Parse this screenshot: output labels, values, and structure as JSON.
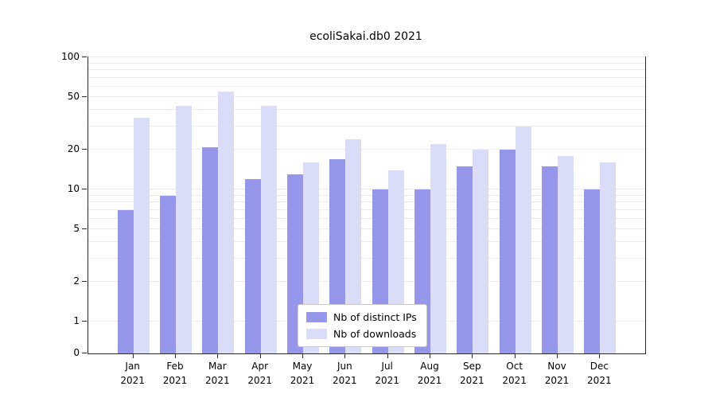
{
  "title": "ecoliSakai.db0 2021",
  "chart_data": {
    "type": "bar",
    "title": "ecoliSakai.db0 2021",
    "categories": [
      "Jan 2021",
      "Feb 2021",
      "Mar 2021",
      "Apr 2021",
      "May 2021",
      "Jun 2021",
      "Jul 2021",
      "Aug 2021",
      "Sep 2021",
      "Oct 2021",
      "Nov 2021",
      "Dec 2021"
    ],
    "series": [
      {
        "name": "Nb of distinct IPs",
        "color": "#9697ea",
        "values": [
          7,
          9,
          21,
          12,
          13,
          17,
          10,
          10,
          15,
          20,
          15,
          10
        ]
      },
      {
        "name": "Nb of downloads",
        "color": "#dbdcf8",
        "values": [
          35,
          43,
          55,
          43,
          16,
          24,
          14,
          22,
          20,
          30,
          18,
          16
        ]
      }
    ],
    "yscale": "symlog",
    "ylim": [
      0,
      100
    ],
    "yticks": [
      0,
      1,
      2,
      5,
      10,
      20,
      50,
      100
    ],
    "minor_gridlines": [
      1,
      2,
      3,
      4,
      5,
      6,
      7,
      8,
      9,
      10,
      20,
      30,
      40,
      50,
      60,
      70,
      80,
      90,
      100
    ],
    "grid_color": "#ececec",
    "legend_position": "bottom-center",
    "xlabel": "",
    "ylabel": ""
  }
}
